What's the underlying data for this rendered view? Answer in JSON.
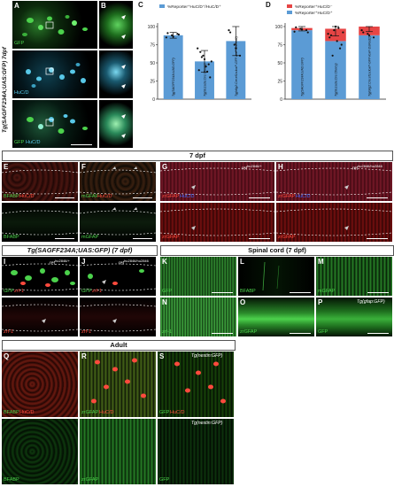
{
  "panel_letters": {
    "a": "A",
    "b": "B",
    "c": "C",
    "d": "D",
    "e": "E",
    "f": "F",
    "g": "G",
    "h": "H",
    "i": "I",
    "j": "J",
    "k": "K",
    "l": "L",
    "m": "M",
    "n": "N",
    "o": "O",
    "p": "P",
    "q": "Q",
    "r": "R",
    "s": "S"
  },
  "left_title": "Tg(SAGFF234A;UAS:GFP) 7dpf",
  "panel_a": {
    "ch1": "GFP",
    "ch2": "HuC/D",
    "ch3a": "GFP",
    "ch3b": "HuC/D"
  },
  "chart_c": {
    "legend": "%Reporter⁺HuC/D⁺/HuC/D⁺",
    "yticks": [
      "100",
      "75",
      "50",
      "25",
      "0"
    ],
    "categories": [
      "Tg(SAGFF234A;UAS:GFP)",
      "Tg(slc1a3a;Cre;Cherry)",
      "Tg(olig2:Cre;ef1a:loxP-GFP-loxP-DsRed2)"
    ]
  },
  "chart_d": {
    "legend1": "%Reporter⁺HuC/D⁻",
    "legend2": "%Reporter⁺HuC/D⁺",
    "yticks": [
      "100",
      "75",
      "50",
      "25",
      "0"
    ],
    "categories": [
      "Tg(SAGFF234A;UAS:GFP)",
      "Tg(slc1a3a;Cre;Cherry)",
      "Tg(olig2:Cre;ef1a:loxP-GFP-loxP-DsRed2)"
    ]
  },
  "chart_data": [
    {
      "type": "bar",
      "title": "",
      "categories": [
        "Tg(SAGFF234A;UAS:GFP)",
        "Tg(slc1a3a;Cre;Cherry)",
        "Tg(olig2:Cre;ef1a:loxP-GFP-loxP-DsRed2)"
      ],
      "series": [
        {
          "name": "%Reporter⁺HuC/D⁺/HuC/D⁺",
          "values": [
            88,
            52,
            80
          ]
        }
      ],
      "error": [
        4,
        15,
        20
      ],
      "ylim": [
        0,
        100
      ],
      "color": "#5b9bd5",
      "points": [
        [
          85,
          88,
          90,
          91,
          86,
          89
        ],
        [
          70,
          60,
          48,
          40,
          55,
          30,
          65,
          45,
          52,
          58,
          38
        ],
        [
          95,
          75,
          60,
          92,
          70
        ]
      ]
    },
    {
      "type": "bar",
      "stacked": true,
      "title": "",
      "categories": [
        "Tg(SAGFF234A;UAS:GFP)",
        "Tg(slc1a3a;Cre;Cherry)",
        "Tg(olig2:Cre;ef1a:loxP-GFP-loxP-DsRed2)"
      ],
      "series": [
        {
          "name": "%Reporter⁺HuC/D⁺",
          "values": [
            95,
            80,
            88
          ],
          "color": "#5b9bd5"
        },
        {
          "name": "%Reporter⁺HuC/D⁻",
          "values": [
            3,
            17,
            12
          ],
          "color": "#e64545"
        }
      ],
      "error": [
        4,
        10,
        7
      ],
      "ylim": [
        0,
        100
      ],
      "points": [
        [
          93,
          97,
          95,
          99,
          96,
          92
        ],
        [
          90,
          95,
          70,
          85,
          100,
          75,
          88,
          80,
          92,
          60,
          98
        ],
        [
          95,
          90,
          85,
          92,
          88
        ]
      ]
    }
  ],
  "section_7dpf": "7 dpf",
  "panel_e": {
    "top_a": "BFABP",
    "top_b": "HuC/D",
    "bottom": "BFABP"
  },
  "panel_f": {
    "top_a": "mGFAP",
    "top_b": "HuC/D",
    "bottom": "mGFAP"
  },
  "panel_g": {
    "geno": "ret",
    "sup": "hu2846/+",
    "top_a": "zrGFAP",
    "top_b": "HuC/D",
    "bottom": "zrGFAP"
  },
  "panel_h": {
    "geno": "ret",
    "sup": "hu2846/hu2846",
    "top_a": "zrGFAP",
    "top_b": "HuC/D",
    "bottom": "zrGFAP"
  },
  "section_i": "Tg(SAGFF234A;UAS:GFP) (7 dpf)",
  "panel_i": {
    "geno": "ret",
    "sup": "hu2846/+",
    "top_a": "GFP",
    "top_b": "zrf-1",
    "bottom": "zrf-1"
  },
  "panel_j": {
    "geno": "ret",
    "sup": "hu2846/hu2846",
    "top_a": "GFP",
    "top_b": "zrf-1",
    "bottom": "zrf-1"
  },
  "section_spinal": "Spinal cord (7 dpf)",
  "panel_k": "GFP",
  "panel_l": "BFABP",
  "panel_m": "mGFAP",
  "panel_n": "zrf-1",
  "panel_o": "zrGFAP",
  "panel_p": {
    "title": "Tg(gfap:GFP)",
    "bottom": "GFP"
  },
  "section_adult": "Adult",
  "panel_q": {
    "top_a": "BFABP",
    "top_b": "HuC/D",
    "bottom": "BFABP"
  },
  "panel_r": {
    "top_a": "zrGFAP",
    "top_b": "HuC/D",
    "bottom": "zrGFAP"
  },
  "panel_s": {
    "title": "Tg(nestin:GFP)",
    "top_a": "GFP",
    "top_b": "HuC/D",
    "mid_title": "Tg(nestin:GFP)",
    "bottom": "GFP"
  },
  "colors": {
    "green": "#4cd24c",
    "red": "#ff4a3d",
    "blue": "#3b6bff",
    "cyan": "#58c8e8",
    "bar_blue": "#5b9bd5",
    "bar_red": "#e64545"
  }
}
